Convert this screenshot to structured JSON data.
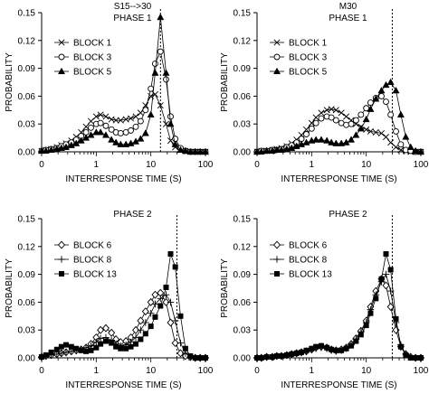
{
  "figure": {
    "background": "#ffffff",
    "ink": "#000000"
  },
  "chart_data": [
    {
      "type": "line",
      "title": "S15-->30",
      "subtitle": "PHASE 1",
      "xlabel": "INTERRESPONSE TIME (S)",
      "ylabel": "PROBABILITY",
      "xscale": "log",
      "xlim": [
        0.1,
        100
      ],
      "xticks": [
        0.1,
        1,
        10,
        100
      ],
      "xtick_labels": [
        "0",
        "1",
        "10",
        "100"
      ],
      "ylim": [
        0,
        0.15
      ],
      "yticks": [
        0,
        0.03,
        0.06,
        0.09,
        0.12,
        0.15
      ],
      "ytick_labels": [
        "0.00",
        "0.03",
        "0.06",
        "0.09",
        "0.12",
        "0.15"
      ],
      "vline": 15,
      "legend_position": "left",
      "x": [
        0.1,
        0.12,
        0.15,
        0.19,
        0.23,
        0.28,
        0.35,
        0.43,
        0.53,
        0.65,
        0.8,
        1.0,
        1.2,
        1.5,
        1.9,
        2.3,
        2.8,
        3.5,
        4.3,
        5.3,
        6.5,
        8.0,
        10,
        12,
        15,
        19,
        23,
        28,
        35,
        43,
        53,
        65,
        80,
        100
      ],
      "series": [
        {
          "name": "BLOCK 1",
          "marker": "x",
          "values": [
            0.001,
            0.002,
            0.003,
            0.005,
            0.007,
            0.009,
            0.012,
            0.016,
            0.021,
            0.027,
            0.033,
            0.038,
            0.04,
            0.038,
            0.035,
            0.034,
            0.034,
            0.035,
            0.036,
            0.038,
            0.042,
            0.05,
            0.06,
            0.062,
            0.05,
            0.03,
            0.012,
            0.005,
            0.002,
            0.001,
            0.0,
            0.0,
            0.0,
            0.0
          ]
        },
        {
          "name": "BLOCK 3",
          "marker": "circle",
          "values": [
            0.001,
            0.002,
            0.003,
            0.004,
            0.006,
            0.008,
            0.01,
            0.013,
            0.017,
            0.021,
            0.026,
            0.03,
            0.031,
            0.028,
            0.024,
            0.021,
            0.02,
            0.021,
            0.023,
            0.027,
            0.033,
            0.045,
            0.068,
            0.095,
            0.108,
            0.078,
            0.038,
            0.014,
            0.004,
            0.001,
            0.0,
            0.0,
            0.0,
            0.0
          ]
        },
        {
          "name": "BLOCK 5",
          "marker": "triangle",
          "values": [
            0.001,
            0.001,
            0.002,
            0.003,
            0.004,
            0.005,
            0.007,
            0.009,
            0.012,
            0.015,
            0.018,
            0.021,
            0.021,
            0.018,
            0.013,
            0.01,
            0.008,
            0.008,
            0.009,
            0.011,
            0.014,
            0.02,
            0.04,
            0.085,
            0.145,
            0.085,
            0.03,
            0.008,
            0.002,
            0.001,
            0.0,
            0.0,
            0.0,
            0.0
          ]
        }
      ]
    },
    {
      "type": "line",
      "title": "M30",
      "subtitle": "PHASE 1",
      "xlabel": "INTERRESPONSE TIME (S)",
      "ylabel": "PROBABILITY",
      "xscale": "log",
      "xlim": [
        0.1,
        100
      ],
      "xticks": [
        0.1,
        1,
        10,
        100
      ],
      "xtick_labels": [
        "0",
        "1",
        "10",
        "100"
      ],
      "ylim": [
        0,
        0.15
      ],
      "yticks": [
        0,
        0.03,
        0.06,
        0.09,
        0.12,
        0.15
      ],
      "ytick_labels": [
        "0.00",
        "0.03",
        "0.06",
        "0.09",
        "0.12",
        "0.15"
      ],
      "vline": 30,
      "legend_position": "left",
      "x": [
        0.1,
        0.12,
        0.15,
        0.19,
        0.23,
        0.28,
        0.35,
        0.43,
        0.53,
        0.65,
        0.8,
        1.0,
        1.2,
        1.5,
        1.9,
        2.3,
        2.8,
        3.5,
        4.3,
        5.3,
        6.5,
        8.0,
        10,
        12,
        15,
        19,
        23,
        28,
        35,
        43,
        53,
        65,
        80,
        100
      ],
      "series": [
        {
          "name": "BLOCK 1",
          "marker": "x",
          "values": [
            0.0,
            0.001,
            0.001,
            0.002,
            0.003,
            0.004,
            0.006,
            0.009,
            0.013,
            0.018,
            0.024,
            0.031,
            0.037,
            0.042,
            0.045,
            0.046,
            0.045,
            0.042,
            0.038,
            0.034,
            0.03,
            0.027,
            0.024,
            0.022,
            0.021,
            0.02,
            0.016,
            0.01,
            0.005,
            0.002,
            0.001,
            0.0,
            0.0,
            0.0
          ]
        },
        {
          "name": "BLOCK 3",
          "marker": "circle",
          "values": [
            0.0,
            0.001,
            0.001,
            0.002,
            0.002,
            0.003,
            0.005,
            0.007,
            0.01,
            0.014,
            0.019,
            0.025,
            0.031,
            0.036,
            0.038,
            0.037,
            0.034,
            0.031,
            0.029,
            0.03,
            0.034,
            0.04,
            0.047,
            0.053,
            0.058,
            0.06,
            0.054,
            0.04,
            0.022,
            0.008,
            0.002,
            0.001,
            0.0,
            0.0
          ]
        },
        {
          "name": "BLOCK 5",
          "marker": "triangle",
          "values": [
            0.0,
            0.0,
            0.001,
            0.001,
            0.002,
            0.002,
            0.003,
            0.004,
            0.006,
            0.008,
            0.01,
            0.012,
            0.013,
            0.013,
            0.012,
            0.01,
            0.009,
            0.009,
            0.01,
            0.013,
            0.018,
            0.025,
            0.035,
            0.046,
            0.057,
            0.066,
            0.072,
            0.075,
            0.066,
            0.04,
            0.016,
            0.005,
            0.001,
            0.0
          ]
        }
      ]
    },
    {
      "type": "line",
      "title": "",
      "subtitle": "PHASE 2",
      "xlabel": "INTERRESPONSE TIME (S)",
      "ylabel": "PROBABILITY",
      "xscale": "log",
      "xlim": [
        0.1,
        100
      ],
      "xticks": [
        0.1,
        1,
        10,
        100
      ],
      "xtick_labels": [
        "0",
        "1",
        "10",
        "100"
      ],
      "ylim": [
        0,
        0.15
      ],
      "yticks": [
        0,
        0.03,
        0.06,
        0.09,
        0.12,
        0.15
      ],
      "ytick_labels": [
        "0.00",
        "0.03",
        "0.06",
        "0.09",
        "0.12",
        "0.15"
      ],
      "vline": 30,
      "legend_position": "left",
      "x": [
        0.1,
        0.12,
        0.15,
        0.19,
        0.23,
        0.28,
        0.35,
        0.43,
        0.53,
        0.65,
        0.8,
        1.0,
        1.2,
        1.5,
        1.9,
        2.3,
        2.8,
        3.5,
        4.3,
        5.3,
        6.5,
        8.0,
        10,
        12,
        15,
        19,
        23,
        28,
        35,
        43,
        53,
        65,
        80,
        100
      ],
      "series": [
        {
          "name": "BLOCK 6",
          "marker": "diamond",
          "values": [
            0.001,
            0.002,
            0.003,
            0.004,
            0.005,
            0.006,
            0.007,
            0.008,
            0.009,
            0.011,
            0.015,
            0.022,
            0.03,
            0.032,
            0.027,
            0.02,
            0.017,
            0.018,
            0.022,
            0.03,
            0.04,
            0.05,
            0.06,
            0.068,
            0.07,
            0.06,
            0.038,
            0.016,
            0.005,
            0.002,
            0.001,
            0.0,
            0.0,
            0.0
          ]
        },
        {
          "name": "BLOCK 8",
          "marker": "plus",
          "values": [
            0.001,
            0.002,
            0.003,
            0.004,
            0.005,
            0.006,
            0.007,
            0.008,
            0.009,
            0.011,
            0.013,
            0.017,
            0.021,
            0.022,
            0.019,
            0.015,
            0.013,
            0.014,
            0.017,
            0.022,
            0.03,
            0.038,
            0.048,
            0.058,
            0.064,
            0.068,
            0.06,
            0.04,
            0.016,
            0.005,
            0.001,
            0.0,
            0.0,
            0.0
          ]
        },
        {
          "name": "BLOCK 13",
          "marker": "square",
          "values": [
            0.001,
            0.003,
            0.006,
            0.009,
            0.012,
            0.014,
            0.012,
            0.01,
            0.008,
            0.007,
            0.008,
            0.011,
            0.015,
            0.018,
            0.016,
            0.012,
            0.01,
            0.01,
            0.012,
            0.015,
            0.02,
            0.026,
            0.034,
            0.044,
            0.056,
            0.076,
            0.112,
            0.098,
            0.045,
            0.01,
            0.002,
            0.0,
            0.0,
            0.0
          ]
        }
      ]
    },
    {
      "type": "line",
      "title": "",
      "subtitle": "PHASE 2",
      "xlabel": "INTERRESPONSE TIME (S)",
      "ylabel": "PROBABILITY",
      "xscale": "log",
      "xlim": [
        0.1,
        100
      ],
      "xticks": [
        0.1,
        1,
        10,
        100
      ],
      "xtick_labels": [
        "0",
        "1",
        "10",
        "100"
      ],
      "ylim": [
        0,
        0.15
      ],
      "yticks": [
        0,
        0.03,
        0.06,
        0.09,
        0.12,
        0.15
      ],
      "ytick_labels": [
        "0.00",
        "0.03",
        "0.06",
        "0.09",
        "0.12",
        "0.15"
      ],
      "vline": 30,
      "legend_position": "left",
      "x": [
        0.1,
        0.12,
        0.15,
        0.19,
        0.23,
        0.28,
        0.35,
        0.43,
        0.53,
        0.65,
        0.8,
        1.0,
        1.2,
        1.5,
        1.9,
        2.3,
        2.8,
        3.5,
        4.3,
        5.3,
        6.5,
        8.0,
        10,
        12,
        15,
        19,
        23,
        28,
        35,
        43,
        53,
        65,
        80,
        100
      ],
      "series": [
        {
          "name": "BLOCK 6",
          "marker": "diamond",
          "values": [
            0.0,
            0.0,
            0.001,
            0.001,
            0.002,
            0.002,
            0.003,
            0.004,
            0.005,
            0.006,
            0.007,
            0.009,
            0.011,
            0.012,
            0.011,
            0.009,
            0.008,
            0.009,
            0.011,
            0.015,
            0.021,
            0.029,
            0.04,
            0.055,
            0.072,
            0.085,
            0.078,
            0.055,
            0.03,
            0.012,
            0.004,
            0.001,
            0.0,
            0.0
          ]
        },
        {
          "name": "BLOCK 8",
          "marker": "plus",
          "values": [
            0.0,
            0.0,
            0.001,
            0.001,
            0.002,
            0.002,
            0.003,
            0.004,
            0.005,
            0.006,
            0.007,
            0.009,
            0.01,
            0.011,
            0.01,
            0.008,
            0.007,
            0.008,
            0.01,
            0.014,
            0.02,
            0.028,
            0.038,
            0.052,
            0.068,
            0.082,
            0.09,
            0.072,
            0.038,
            0.014,
            0.004,
            0.001,
            0.0,
            0.0
          ]
        },
        {
          "name": "BLOCK 13",
          "marker": "square",
          "values": [
            0.0,
            0.0,
            0.001,
            0.001,
            0.002,
            0.002,
            0.003,
            0.004,
            0.005,
            0.006,
            0.008,
            0.01,
            0.012,
            0.013,
            0.011,
            0.009,
            0.008,
            0.008,
            0.01,
            0.013,
            0.018,
            0.025,
            0.035,
            0.048,
            0.064,
            0.085,
            0.112,
            0.095,
            0.042,
            0.012,
            0.003,
            0.0,
            0.0,
            0.0
          ]
        }
      ]
    }
  ]
}
